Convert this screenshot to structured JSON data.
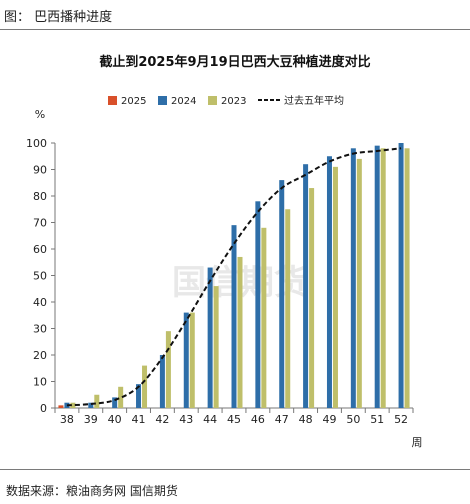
{
  "header": {
    "figure_title": "图：  巴西播种进度"
  },
  "footer": {
    "source": "数据来源：粮油商务网  国信期货"
  },
  "chart_data": {
    "type": "bar",
    "title": "截止到2025年9月19日巴西大豆种植进度对比",
    "ylabel": "%",
    "xlabel": "周",
    "ylim": [
      0,
      100
    ],
    "yticks": [
      0,
      10,
      20,
      30,
      40,
      50,
      60,
      70,
      80,
      90,
      100
    ],
    "categories": [
      "38",
      "39",
      "40",
      "41",
      "42",
      "43",
      "44",
      "45",
      "46",
      "47",
      "48",
      "49",
      "50",
      "51",
      "52"
    ],
    "series": [
      {
        "name": "2025",
        "type": "bar",
        "color": "#d9502a",
        "values": [
          1,
          null,
          null,
          null,
          null,
          null,
          null,
          null,
          null,
          null,
          null,
          null,
          null,
          null,
          null
        ]
      },
      {
        "name": "2024",
        "type": "bar",
        "color": "#2e6ea8",
        "values": [
          2,
          2,
          4,
          9,
          20,
          36,
          53,
          69,
          78,
          86,
          92,
          95,
          98,
          99,
          100
        ]
      },
      {
        "name": "2023",
        "type": "bar",
        "color": "#bfbf6a",
        "values": [
          2,
          5,
          8,
          16,
          29,
          36,
          46,
          57,
          68,
          75,
          83,
          91,
          94,
          98,
          98
        ]
      },
      {
        "name": "过去五年平均",
        "type": "line",
        "color": "#111111",
        "values": [
          1,
          1.5,
          3,
          8,
          19,
          33,
          48,
          62,
          74,
          83,
          88,
          93,
          96,
          97,
          98
        ]
      }
    ],
    "legend_position": "top",
    "grid": false,
    "watermark": "国信期货"
  }
}
